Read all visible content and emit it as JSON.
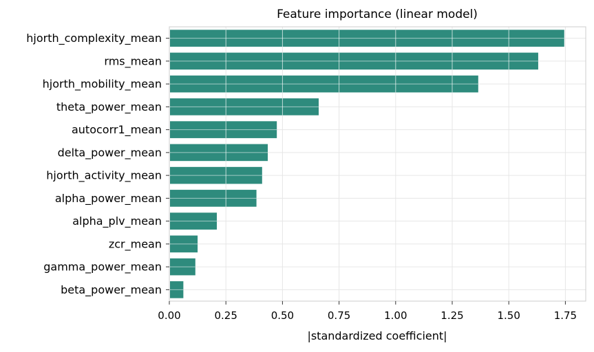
{
  "chart_data": {
    "type": "bar",
    "orientation": "horizontal",
    "title": "Feature importance (linear model)",
    "xlabel": "|standardized coefficient|",
    "ylabel": "",
    "xlim": [
      0,
      1.84
    ],
    "xticks": [
      "0.00",
      "0.25",
      "0.50",
      "0.75",
      "1.00",
      "1.25",
      "1.50",
      "1.75"
    ],
    "grid": true,
    "bar_color": "#2e8b7d",
    "grid_color": "#e6e6e6",
    "categories": [
      "hjorth_complexity_mean",
      "rms_mean",
      "hjorth_mobility_mean",
      "theta_power_mean",
      "autocorr1_mean",
      "delta_power_mean",
      "hjorth_activity_mean",
      "alpha_power_mean",
      "alpha_plv_mean",
      "zcr_mean",
      "gamma_power_mean",
      "beta_power_mean"
    ],
    "values": [
      1.745,
      1.63,
      1.365,
      0.66,
      0.475,
      0.435,
      0.41,
      0.385,
      0.21,
      0.125,
      0.115,
      0.062
    ]
  }
}
